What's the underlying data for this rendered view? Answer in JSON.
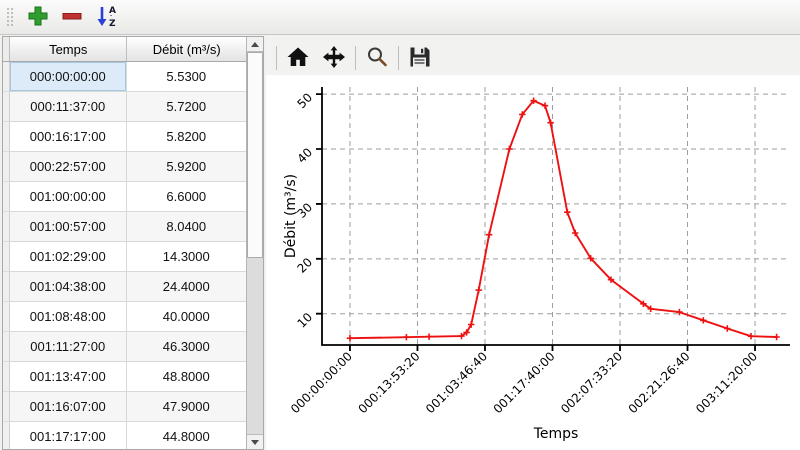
{
  "app_toolbar": {
    "icons": [
      {
        "name": "add-row",
        "color": "#2f9e2f"
      },
      {
        "name": "remove-row",
        "color": "#c03030"
      },
      {
        "name": "sort-ascending",
        "color": "#2b3fd4"
      }
    ],
    "sort_letters": [
      "A",
      "Z"
    ]
  },
  "table": {
    "columns": [
      "Temps",
      "Débit (m³/s)"
    ],
    "rows": [
      [
        "000:00:00:00",
        "5.5300"
      ],
      [
        "000:11:37:00",
        "5.7200"
      ],
      [
        "000:16:17:00",
        "5.8200"
      ],
      [
        "000:22:57:00",
        "5.9200"
      ],
      [
        "001:00:00:00",
        "6.6000"
      ],
      [
        "001:00:57:00",
        "8.0400"
      ],
      [
        "001:02:29:00",
        "14.3000"
      ],
      [
        "001:04:38:00",
        "24.4000"
      ],
      [
        "001:08:48:00",
        "40.0000"
      ],
      [
        "001:11:27:00",
        "46.3000"
      ],
      [
        "001:13:47:00",
        "48.8000"
      ],
      [
        "001:16:07:00",
        "47.9000"
      ],
      [
        "001:17:17:00",
        "44.8000"
      ]
    ],
    "selected": {
      "row": 0,
      "col": 0
    }
  },
  "chart_toolbar": {
    "icons": [
      "home",
      "pan",
      "zoom",
      "save"
    ]
  },
  "chart_data": {
    "type": "line",
    "title": "",
    "xlabel": "Temps",
    "ylabel": "Débit (m³/s)",
    "grid": "dashed",
    "legend": "none",
    "line_color": "#ee1111",
    "marker": "plus",
    "x_tick_labels": [
      "000:00:00:00",
      "000:13:53:20",
      "001:03:46:40",
      "001:17:40:00",
      "002:07:33:20",
      "002:21:26:40",
      "003:11:20:00"
    ],
    "y_ticks": [
      10,
      20,
      30,
      40,
      50
    ],
    "xlim_seconds": [
      -20700,
      325900
    ],
    "ylim": [
      4.3,
      51.3
    ],
    "series": [
      {
        "name": "Débit (m³/s)",
        "points": [
          {
            "t": "000:00:00:00",
            "v": 5.53
          },
          {
            "t": "000:11:37:00",
            "v": 5.72
          },
          {
            "t": "000:16:17:00",
            "v": 5.82
          },
          {
            "t": "000:22:57:00",
            "v": 5.92
          },
          {
            "t": "001:00:00:00",
            "v": 6.6
          },
          {
            "t": "001:00:57:00",
            "v": 8.04
          },
          {
            "t": "001:02:29:00",
            "v": 14.3
          },
          {
            "t": "001:04:38:00",
            "v": 24.4
          },
          {
            "t": "001:08:48:00",
            "v": 40.0
          },
          {
            "t": "001:11:27:00",
            "v": 46.3
          },
          {
            "t": "001:13:47:00",
            "v": 48.8
          },
          {
            "t": "001:16:07:00",
            "v": 47.9
          },
          {
            "t": "001:17:17:00",
            "v": 44.8
          },
          {
            "t": "001:20:43:20",
            "v": 28.5
          },
          {
            "t": "001:22:20:00",
            "v": 24.7
          },
          {
            "t": "002:01:31:40",
            "v": 20.1
          },
          {
            "t": "002:05:41:40",
            "v": 16.2
          },
          {
            "t": "002:12:21:40",
            "v": 11.8
          },
          {
            "t": "002:13:51:40",
            "v": 10.9
          },
          {
            "t": "002:19:46:40",
            "v": 10.3
          },
          {
            "t": "003:00:41:40",
            "v": 8.8
          },
          {
            "t": "003:05:38:20",
            "v": 7.3
          },
          {
            "t": "003:10:30:00",
            "v": 5.9
          },
          {
            "t": "003:15:46:40",
            "v": 5.75
          }
        ]
      }
    ]
  }
}
